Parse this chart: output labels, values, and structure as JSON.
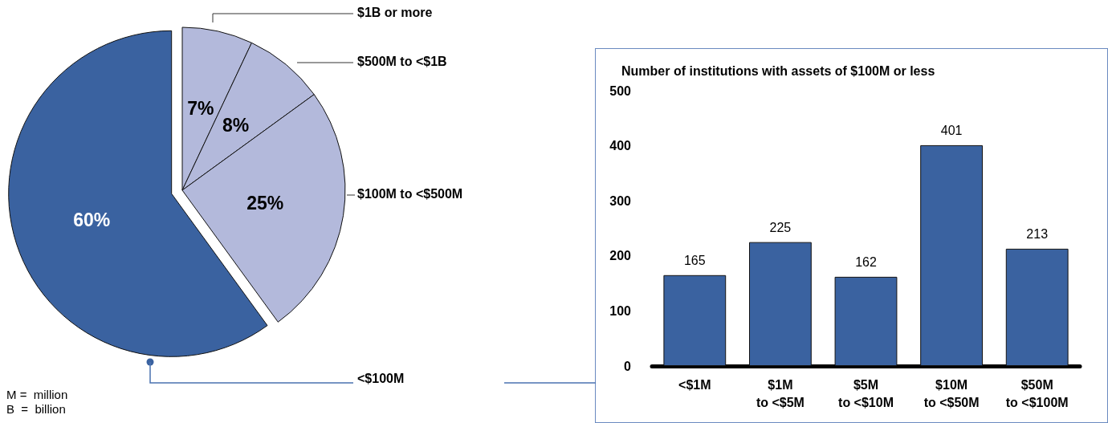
{
  "chart_data": [
    {
      "type": "pie",
      "categories": [
        "$1B or more",
        "$500M to <$1B",
        "$100M to <$500M",
        "<$100M"
      ],
      "values": [
        7,
        8,
        25,
        60
      ],
      "colors": [
        "#b3b9db",
        "#b3b9db",
        "#b3b9db",
        "#3a62a0"
      ],
      "value_labels": [
        "7%",
        "8%",
        "25%",
        "60%"
      ],
      "annotations": [
        "M =  million",
        "B  =  billion"
      ]
    },
    {
      "type": "bar",
      "title": "Number of institutions with assets of $100M or less",
      "categories": [
        "<$1M",
        "$1M\nto <$5M",
        "$5M\nto <$10M",
        "$10M\nto <$50M",
        "$50M\nto <$100M"
      ],
      "values": [
        165,
        225,
        162,
        401,
        213
      ],
      "color": "#3a62a0",
      "ylim": [
        0,
        500
      ],
      "yticks": [
        0,
        100,
        200,
        300,
        400,
        500
      ],
      "data_labels": true
    }
  ]
}
